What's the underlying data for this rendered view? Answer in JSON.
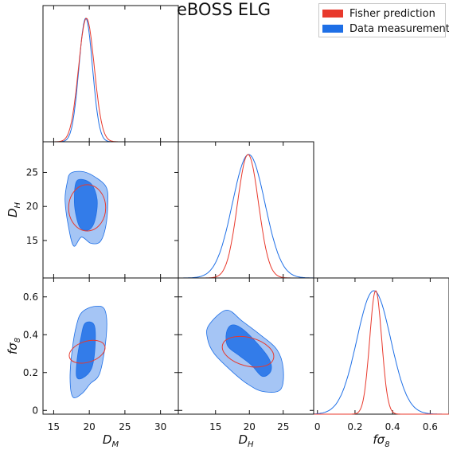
{
  "chart_data": {
    "type": "corner",
    "title": "eBOSS ELG",
    "parameters": [
      {
        "label": "D_M",
        "display": [
          "D",
          "M"
        ],
        "range": [
          13.5,
          32.5
        ],
        "ticks": [
          15,
          20,
          25,
          30
        ]
      },
      {
        "label": "D_H",
        "display": [
          "D",
          "H"
        ],
        "range": [
          9.5,
          29.5
        ],
        "ticks": [
          15,
          20,
          25
        ]
      },
      {
        "label": "fσ8",
        "display": [
          "fσ",
          "8"
        ],
        "range": [
          -0.02,
          0.7
        ],
        "ticks": [
          0.0,
          0.2,
          0.4,
          0.6
        ]
      }
    ],
    "series": [
      {
        "name": "Fisher prediction",
        "color": "#e8392c",
        "style": "outline",
        "mean": [
          19.6,
          19.8,
          0.31
        ],
        "sigma": [
          1.1,
          1.55,
          0.032
        ],
        "contours": {
          "0-1": {
            "center": [
              19.7,
              19.8
            ],
            "rx": 2.6,
            "ry": 3.4,
            "angle": 0
          },
          "0-2": {
            "center": [
              19.7,
              0.31
            ],
            "rx": 2.6,
            "ry": 0.055,
            "angle": 18
          },
          "1-2": {
            "center": [
              19.8,
              0.31
            ],
            "rx": 3.9,
            "ry": 0.075,
            "angle": -15
          }
        }
      },
      {
        "name": "Data measurement",
        "color": "#1e6fe6",
        "style": "filled",
        "mean": [
          19.5,
          19.9,
          0.3
        ],
        "sigma": [
          0.95,
          2.4,
          0.09
        ],
        "contours": {
          "0-1": {
            "inner": [
              [
                18.3,
                23.8
              ],
              [
                20.2,
                23.4
              ],
              [
                21.1,
                21.0
              ],
              [
                20.8,
                18.0
              ],
              [
                20.0,
                16.6
              ],
              [
                18.8,
                16.8
              ],
              [
                18.2,
                18.4
              ],
              [
                17.9,
                21.0
              ]
            ],
            "outer": [
              [
                17.4,
                24.9
              ],
              [
                19.2,
                25.1
              ],
              [
                21.0,
                24.2
              ],
              [
                22.4,
                22.8
              ],
              [
                22.6,
                20.5
              ],
              [
                22.3,
                17.0
              ],
              [
                21.5,
                14.8
              ],
              [
                20.2,
                14.6
              ],
              [
                18.9,
                15.5
              ],
              [
                17.8,
                14.2
              ],
              [
                17.0,
                17.5
              ],
              [
                16.6,
                21.0
              ],
              [
                16.9,
                23.5
              ]
            ]
          },
          "0-2": {
            "inner": [
              [
                19.4,
                0.46
              ],
              [
                20.7,
                0.45
              ],
              [
                20.8,
                0.33
              ],
              [
                20.3,
                0.22
              ],
              [
                19.0,
                0.17
              ],
              [
                18.2,
                0.18
              ],
              [
                18.3,
                0.27
              ],
              [
                18.8,
                0.38
              ]
            ],
            "outer": [
              [
                19.0,
                0.52
              ],
              [
                20.8,
                0.55
              ],
              [
                22.2,
                0.53
              ],
              [
                22.4,
                0.4
              ],
              [
                21.5,
                0.2
              ],
              [
                20.1,
                0.14
              ],
              [
                19.0,
                0.09
              ],
              [
                17.7,
                0.07
              ],
              [
                17.3,
                0.17
              ],
              [
                17.6,
                0.32
              ],
              [
                18.2,
                0.45
              ]
            ]
          },
          "1-2": {
            "inner": [
              [
                17.3,
                0.45
              ],
              [
                18.6,
                0.44
              ],
              [
                20.5,
                0.38
              ],
              [
                22.8,
                0.28
              ],
              [
                23.2,
                0.21
              ],
              [
                21.9,
                0.18
              ],
              [
                20.3,
                0.24
              ],
              [
                18.5,
                0.29
              ],
              [
                16.8,
                0.34
              ],
              [
                16.6,
                0.41
              ]
            ],
            "outer": [
              [
                14.0,
                0.45
              ],
              [
                16.6,
                0.53
              ],
              [
                19.0,
                0.47
              ],
              [
                21.6,
                0.4
              ],
              [
                24.1,
                0.32
              ],
              [
                25.0,
                0.22
              ],
              [
                24.6,
                0.11
              ],
              [
                22.0,
                0.1
              ],
              [
                19.7,
                0.14
              ],
              [
                17.3,
                0.21
              ],
              [
                14.8,
                0.3
              ],
              [
                13.8,
                0.38
              ]
            ]
          }
        }
      }
    ]
  }
}
